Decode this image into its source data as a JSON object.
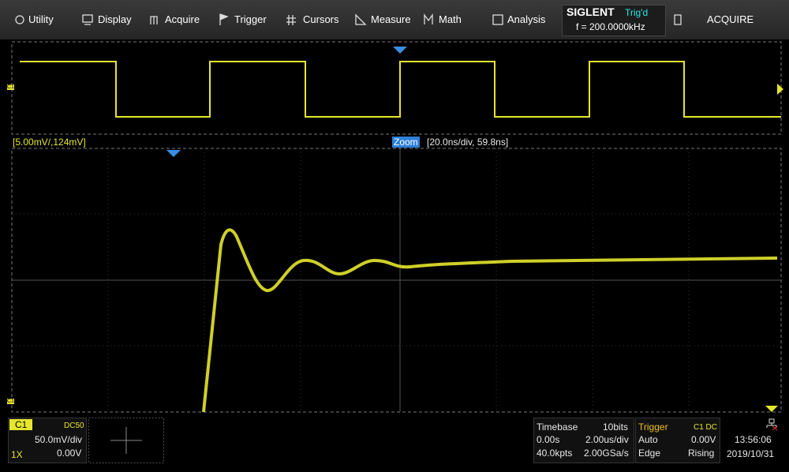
{
  "menu": {
    "items": [
      "Utility",
      "Display",
      "Acquire",
      "Trigger",
      "Cursors",
      "Measure",
      "Math",
      "Analysis"
    ],
    "brand": "SIGLENT",
    "trig_status": "Trig'd",
    "frequency": "f = 200.0000kHz",
    "mode": "ACQUIRE"
  },
  "overview": {
    "channel_marker": "C1"
  },
  "zoom": {
    "scale": "[5.00mV/,124mV]",
    "label": "Zoom",
    "timebase": "[20.0ns/div, 59.8ns]",
    "channel_marker": "C1"
  },
  "channel": {
    "name": "C1",
    "coupling": "DC50",
    "scale": "50.0mV/div",
    "probe": "1X",
    "offset": "0.00V"
  },
  "timebase": {
    "title": "Timebase",
    "bits": "10bits",
    "delay": "0.00s",
    "scale": "2.00us/div",
    "points": "40.0kpts",
    "rate": "2.00GSa/s"
  },
  "trigger": {
    "title": "Trigger",
    "source": "C1 DC",
    "mode": "Auto",
    "level": "0.00V",
    "type": "Edge",
    "slope": "Rising"
  },
  "clock": {
    "time": "13:56:06",
    "date": "2019/10/31"
  }
}
